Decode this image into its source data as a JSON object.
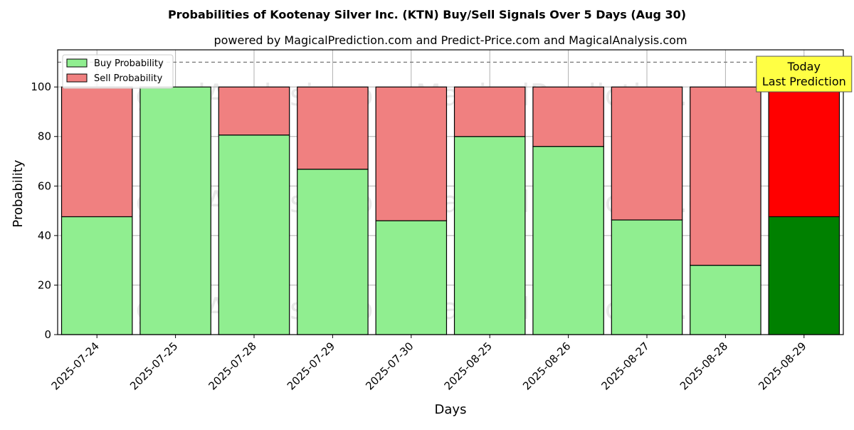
{
  "chart_data": {
    "type": "bar",
    "stacked": true,
    "title": "Probabilities of Kootenay Silver Inc. (KTN) Buy/Sell Signals Over 5 Days (Aug 30)",
    "subtitle": "powered by MagicalPrediction.com and Predict-Price.com and MagicalAnalysis.com",
    "xlabel": "Days",
    "ylabel": "Probability",
    "ylim": [
      0,
      115
    ],
    "yticks": [
      0,
      20,
      40,
      60,
      80,
      100
    ],
    "grid": true,
    "legend_position": "top-left",
    "reference_line": 110,
    "categories": [
      "2025-07-24",
      "2025-07-25",
      "2025-07-28",
      "2025-07-29",
      "2025-07-30",
      "2025-08-25",
      "2025-08-26",
      "2025-08-27",
      "2025-08-28",
      "2025-08-29"
    ],
    "series": [
      {
        "name": "Buy Probability",
        "color": "#90ee90",
        "highlight_color": "#008000",
        "values": [
          47.6,
          100.0,
          80.6,
          66.8,
          46.0,
          80.0,
          76.0,
          46.3,
          28.0,
          47.6
        ]
      },
      {
        "name": "Sell Probability",
        "color": "#f08080",
        "highlight_color": "#ff0000",
        "values": [
          52.4,
          0.0,
          19.4,
          33.2,
          54.0,
          20.0,
          24.0,
          53.7,
          72.0,
          52.4
        ]
      }
    ],
    "highlight_index": 9,
    "annotation": {
      "line1": "Today",
      "line2": "Last Prediction",
      "color": "#ffff44"
    },
    "watermarks": [
      "MagicalAnalysis.com",
      "MagicalPrediction.com"
    ]
  }
}
